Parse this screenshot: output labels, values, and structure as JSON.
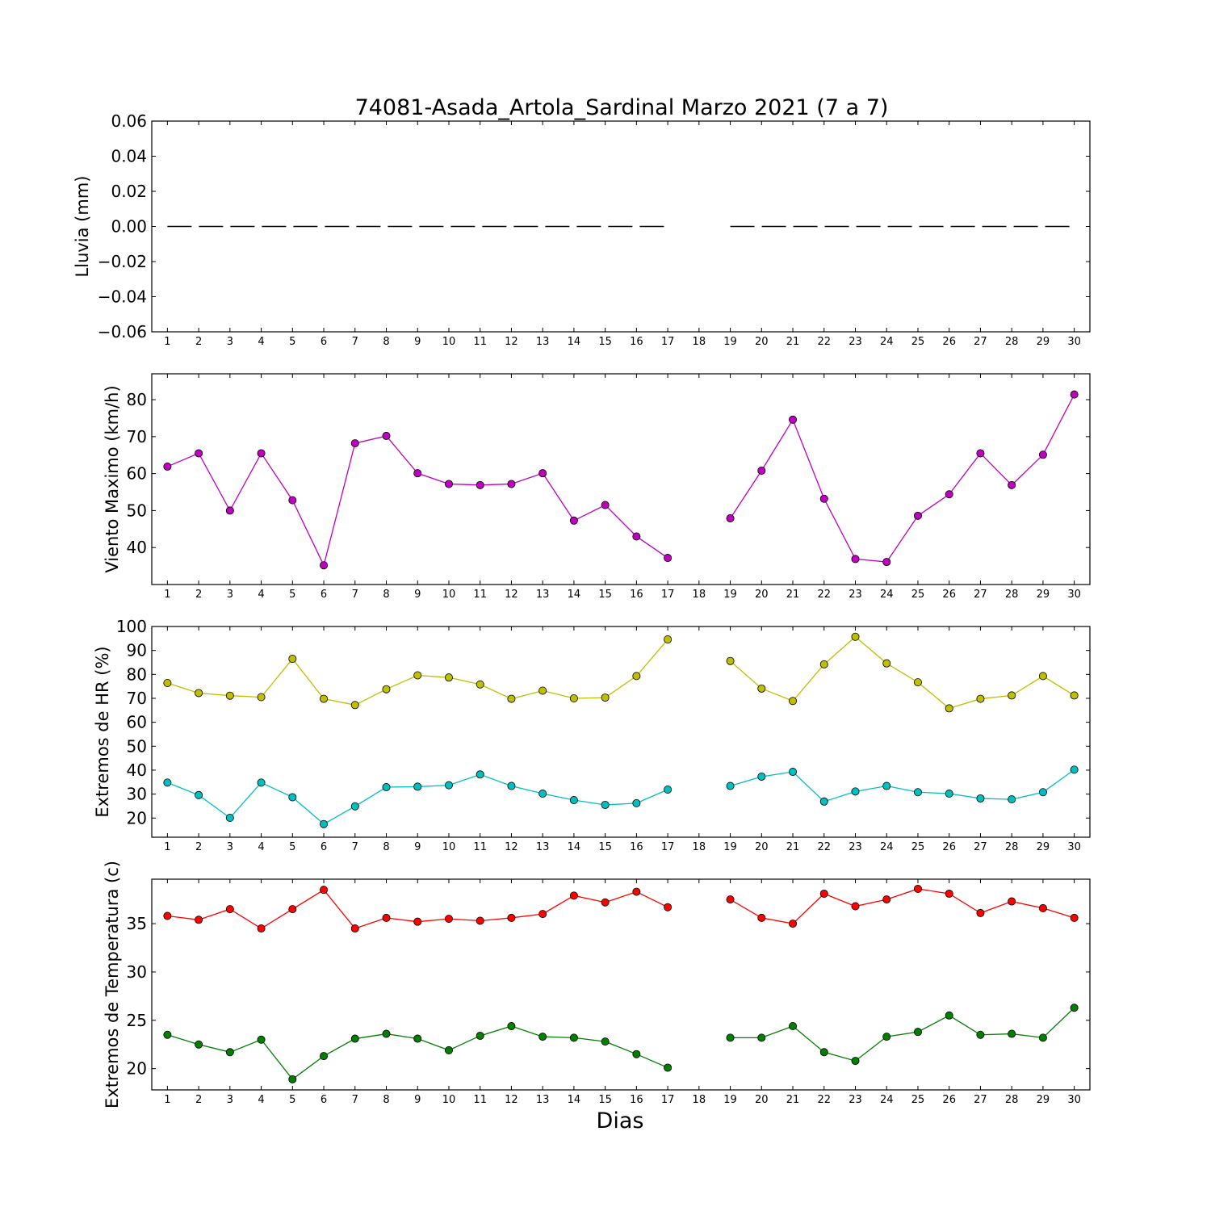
{
  "title": "74081-Asada_Artola_Sardinal Marzo 2021  (7 a 7)",
  "xlabel": "Dias",
  "chart_data": [
    {
      "type": "line",
      "ylabel": "Lluvia (mm)",
      "x": [
        1,
        2,
        3,
        4,
        5,
        6,
        7,
        8,
        9,
        10,
        11,
        12,
        13,
        14,
        15,
        16,
        17,
        18,
        19,
        20,
        21,
        22,
        23,
        24,
        25,
        26,
        27,
        28,
        29,
        30
      ],
      "xlim": [
        0.5,
        30.5
      ],
      "ylim": [
        -0.06,
        0.06
      ],
      "yticks": [
        -0.06,
        -0.04,
        -0.02,
        0.0,
        0.02,
        0.04,
        0.06
      ],
      "ytick_labels": [
        "−0.06",
        "−0.04",
        "−0.02",
        "0.00",
        "0.02",
        "0.04",
        "0.06"
      ],
      "series": [
        {
          "color": "#000000",
          "style": "dashed",
          "marker": false,
          "values": [
            0,
            0,
            0,
            0,
            0,
            0,
            0,
            0,
            0,
            0,
            0,
            0,
            0,
            0,
            0,
            0,
            0,
            null,
            0,
            0,
            0,
            0,
            0,
            0,
            0,
            0,
            0,
            0,
            0,
            0
          ]
        }
      ]
    },
    {
      "type": "line",
      "ylabel": "Viento Maximo (km/h)",
      "x": [
        1,
        2,
        3,
        4,
        5,
        6,
        7,
        8,
        9,
        10,
        11,
        12,
        13,
        14,
        15,
        16,
        17,
        18,
        19,
        20,
        21,
        22,
        23,
        24,
        25,
        26,
        27,
        28,
        29,
        30
      ],
      "xlim": [
        0.5,
        30.5
      ],
      "ylim": [
        30,
        87
      ],
      "yticks": [
        40,
        50,
        60,
        70,
        80
      ],
      "ytick_labels": [
        "40",
        "50",
        "60",
        "70",
        "80"
      ],
      "series": [
        {
          "color": "#bf00bf",
          "style": "solid",
          "marker": true,
          "values": [
            61.9,
            65.5,
            50.0,
            65.5,
            52.8,
            35.2,
            68.2,
            70.2,
            60.1,
            57.2,
            56.9,
            57.2,
            60.1,
            47.3,
            51.5,
            43.0,
            37.2,
            null,
            47.9,
            60.8,
            74.6,
            53.2,
            36.9,
            36.1,
            48.6,
            54.4,
            65.5,
            56.9,
            65.1,
            81.4
          ]
        }
      ]
    },
    {
      "type": "line",
      "ylabel": "Extremos de HR (%)",
      "x": [
        1,
        2,
        3,
        4,
        5,
        6,
        7,
        8,
        9,
        10,
        11,
        12,
        13,
        14,
        15,
        16,
        17,
        18,
        19,
        20,
        21,
        22,
        23,
        24,
        25,
        26,
        27,
        28,
        29,
        30
      ],
      "xlim": [
        0.5,
        30.5
      ],
      "ylim": [
        12,
        100
      ],
      "yticks": [
        20,
        30,
        40,
        50,
        60,
        70,
        80,
        90,
        100
      ],
      "ytick_labels": [
        "20",
        "30",
        "40",
        "50",
        "60",
        "70",
        "80",
        "90",
        "100"
      ],
      "series": [
        {
          "color": "#bfbf00",
          "style": "solid",
          "marker": true,
          "values": [
            76.4,
            72.2,
            71.1,
            70.5,
            86.5,
            69.8,
            67.2,
            73.8,
            79.6,
            78.7,
            75.8,
            69.8,
            73.2,
            70.0,
            70.3,
            79.3,
            94.6,
            null,
            85.6,
            74.1,
            68.9,
            84.2,
            95.7,
            84.6,
            76.7,
            65.8,
            69.8,
            71.2,
            79.3,
            71.2
          ]
        },
        {
          "color": "#00bfbf",
          "style": "solid",
          "marker": true,
          "values": [
            34.8,
            29.6,
            20.1,
            34.8,
            28.7,
            17.5,
            24.9,
            32.9,
            33.1,
            33.7,
            38.2,
            33.4,
            30.2,
            27.5,
            25.5,
            26.2,
            31.9,
            null,
            33.4,
            37.3,
            39.3,
            26.9,
            31.1,
            33.4,
            30.8,
            30.2,
            28.2,
            27.8,
            30.8,
            40.2
          ]
        }
      ]
    },
    {
      "type": "line",
      "ylabel": "Extremos de Temperatura (c)",
      "x": [
        1,
        2,
        3,
        4,
        5,
        6,
        7,
        8,
        9,
        10,
        11,
        12,
        13,
        14,
        15,
        16,
        17,
        18,
        19,
        20,
        21,
        22,
        23,
        24,
        25,
        26,
        27,
        28,
        29,
        30
      ],
      "xlim": [
        0.5,
        30.5
      ],
      "ylim": [
        17.8,
        39.6
      ],
      "yticks": [
        20,
        25,
        30,
        35
      ],
      "ytick_labels": [
        "20",
        "25",
        "30",
        "35"
      ],
      "series": [
        {
          "color": "#ff0000",
          "style": "solid",
          "marker": true,
          "values": [
            35.8,
            35.4,
            36.5,
            34.5,
            36.5,
            38.5,
            34.5,
            35.6,
            35.2,
            35.5,
            35.3,
            35.6,
            36.0,
            37.9,
            37.2,
            38.3,
            36.7,
            null,
            37.5,
            35.6,
            35.0,
            38.1,
            36.8,
            37.5,
            38.6,
            38.1,
            36.1,
            37.3,
            36.6,
            35.6
          ]
        },
        {
          "color": "#007f00",
          "style": "solid",
          "marker": true,
          "values": [
            23.5,
            22.5,
            21.7,
            23.0,
            18.9,
            21.3,
            23.1,
            23.6,
            23.1,
            21.9,
            23.4,
            24.4,
            23.3,
            23.2,
            22.8,
            21.5,
            20.1,
            null,
            23.2,
            23.2,
            24.4,
            21.7,
            20.8,
            23.3,
            23.8,
            25.5,
            23.5,
            23.6,
            23.2,
            26.3
          ]
        }
      ]
    }
  ]
}
